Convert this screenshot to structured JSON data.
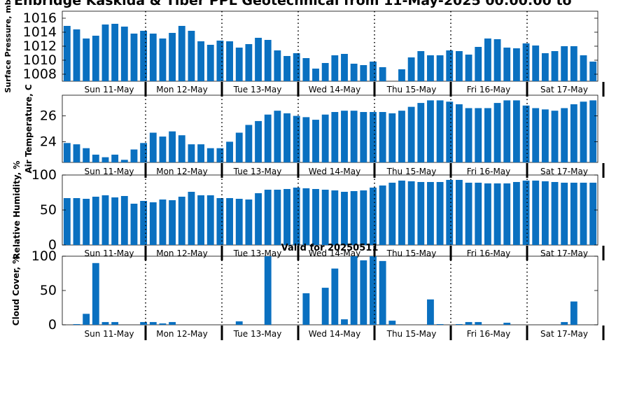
{
  "page": {
    "title": "Enbridge  Kaskida & Tiber PPL Geotechnical from 11-May-2025 00:00:00 to",
    "valid_label": "Valid for 20250511"
  },
  "day_labels": [
    "Sun 11-May",
    "Mon 12-May",
    "Tue 13-May",
    "Wed 14-May",
    "Thu 15-May",
    "Fri 16-May",
    "Sat 17-May"
  ],
  "colors": {
    "bar": "#0a70c0",
    "axis": "#000000",
    "divider": "#000000"
  },
  "chart_data": [
    {
      "type": "bar",
      "ylabel": "Surface Pressure, mb",
      "ylim": [
        1007,
        1017
      ],
      "yticks": [
        1008,
        1010,
        1012,
        1014,
        1016
      ],
      "values": [
        1014.9,
        1014.4,
        1013.1,
        1013.5,
        1015.1,
        1015.2,
        1014.8,
        1013.8,
        1014.2,
        1013.8,
        1013.1,
        1013.9,
        1014.9,
        1014.2,
        1012.7,
        1012.2,
        1012.8,
        1012.7,
        1011.8,
        1012.3,
        1013.2,
        1012.9,
        1011.4,
        1010.6,
        1011.0,
        1010.3,
        1008.8,
        1009.6,
        1010.7,
        1010.9,
        1009.5,
        1009.3,
        1009.8,
        1009.0,
        1006.5,
        1008.7,
        1010.4,
        1011.3,
        1010.7,
        1010.7,
        1011.4,
        1011.3,
        1010.8,
        1011.9,
        1013.1,
        1013.0,
        1011.8,
        1011.7,
        1012.4,
        1012.1,
        1011.0,
        1011.3,
        1012.0,
        1012.0,
        1010.7,
        1009.8
      ]
    },
    {
      "type": "bar",
      "ylabel": "Air Temperature, C",
      "ylim": [
        22.4,
        27.6
      ],
      "yticks": [
        24,
        26
      ],
      "values": [
        23.9,
        23.8,
        23.5,
        23.0,
        22.8,
        23.0,
        22.6,
        23.4,
        23.9,
        24.7,
        24.4,
        24.8,
        24.5,
        23.8,
        23.8,
        23.5,
        23.5,
        24.0,
        24.7,
        25.3,
        25.6,
        26.1,
        26.4,
        26.2,
        26.0,
        25.9,
        25.7,
        26.1,
        26.3,
        26.4,
        26.4,
        26.3,
        26.3,
        26.3,
        26.2,
        26.4,
        26.7,
        27.0,
        27.2,
        27.2,
        27.1,
        26.9,
        26.6,
        26.6,
        26.6,
        27.0,
        27.2,
        27.2,
        26.8,
        26.6,
        26.5,
        26.4,
        26.6,
        26.9,
        27.1,
        27.2
      ]
    },
    {
      "type": "bar",
      "ylabel": "Relative Humidity, %",
      "ylim": [
        0,
        100
      ],
      "yticks": [
        0,
        50,
        100
      ],
      "values": [
        67,
        67,
        66,
        69,
        71,
        68,
        70,
        59,
        63,
        61,
        65,
        64,
        69,
        76,
        71,
        71,
        67,
        67,
        66,
        65,
        74,
        79,
        79,
        80,
        82,
        81,
        80,
        79,
        78,
        76,
        77,
        78,
        82,
        85,
        89,
        92,
        91,
        90,
        90,
        90,
        93,
        93,
        89,
        89,
        88,
        88,
        88,
        90,
        92,
        92,
        91,
        90,
        89,
        89,
        89,
        89
      ]
    },
    {
      "type": "bar",
      "ylabel": "Cloud Cover, %",
      "ylim": [
        0,
        100
      ],
      "yticks": [
        0,
        50,
        100
      ],
      "values": [
        0,
        1,
        16,
        90,
        4,
        4,
        0,
        0,
        4,
        4,
        2,
        4,
        0,
        0,
        0,
        0,
        0,
        0,
        5,
        0,
        0,
        100,
        0,
        0,
        0,
        46,
        0,
        54,
        82,
        8,
        100,
        94,
        100,
        93,
        6,
        0,
        0,
        0,
        37,
        1,
        0,
        1,
        4,
        4,
        0,
        0,
        3,
        0,
        0,
        0,
        0,
        0,
        4,
        34,
        0,
        0
      ]
    }
  ]
}
